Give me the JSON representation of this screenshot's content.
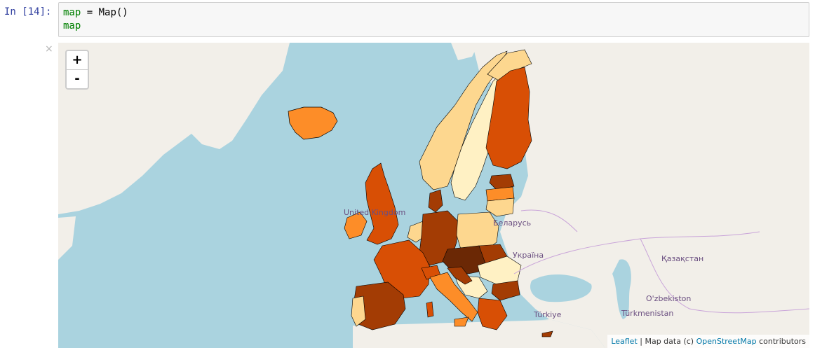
{
  "cell": {
    "prompt": "In [14]:",
    "line1_var": "map",
    "line1_rest": " = Map()",
    "line2_var": "map"
  },
  "output": {
    "close_label": "×"
  },
  "map": {
    "zoom_in": "+",
    "zoom_out": "-",
    "labels": {
      "uk": "United Kingdom",
      "belarus": "Беларусь",
      "ukraine": "Україна",
      "kazakhstan": "Қазақстан",
      "uzbekistan": "O'zbekiston",
      "turkmenistan": "Türkmenistan",
      "turkey": "Türkiye"
    },
    "attribution": {
      "leaflet": "Leaflet",
      "sep": " | Map data (c) ",
      "osm": "OpenStreetMap",
      "contributors": " contributors"
    },
    "colors": {
      "water": "#aad3df",
      "land": "#f2efe9",
      "light": "#fff1c4",
      "pale": "#fdd78f",
      "orange": "#fd8d28",
      "dark_orange": "#d84f05",
      "brown": "#a33c04",
      "dark_brown": "#6b2805"
    }
  }
}
